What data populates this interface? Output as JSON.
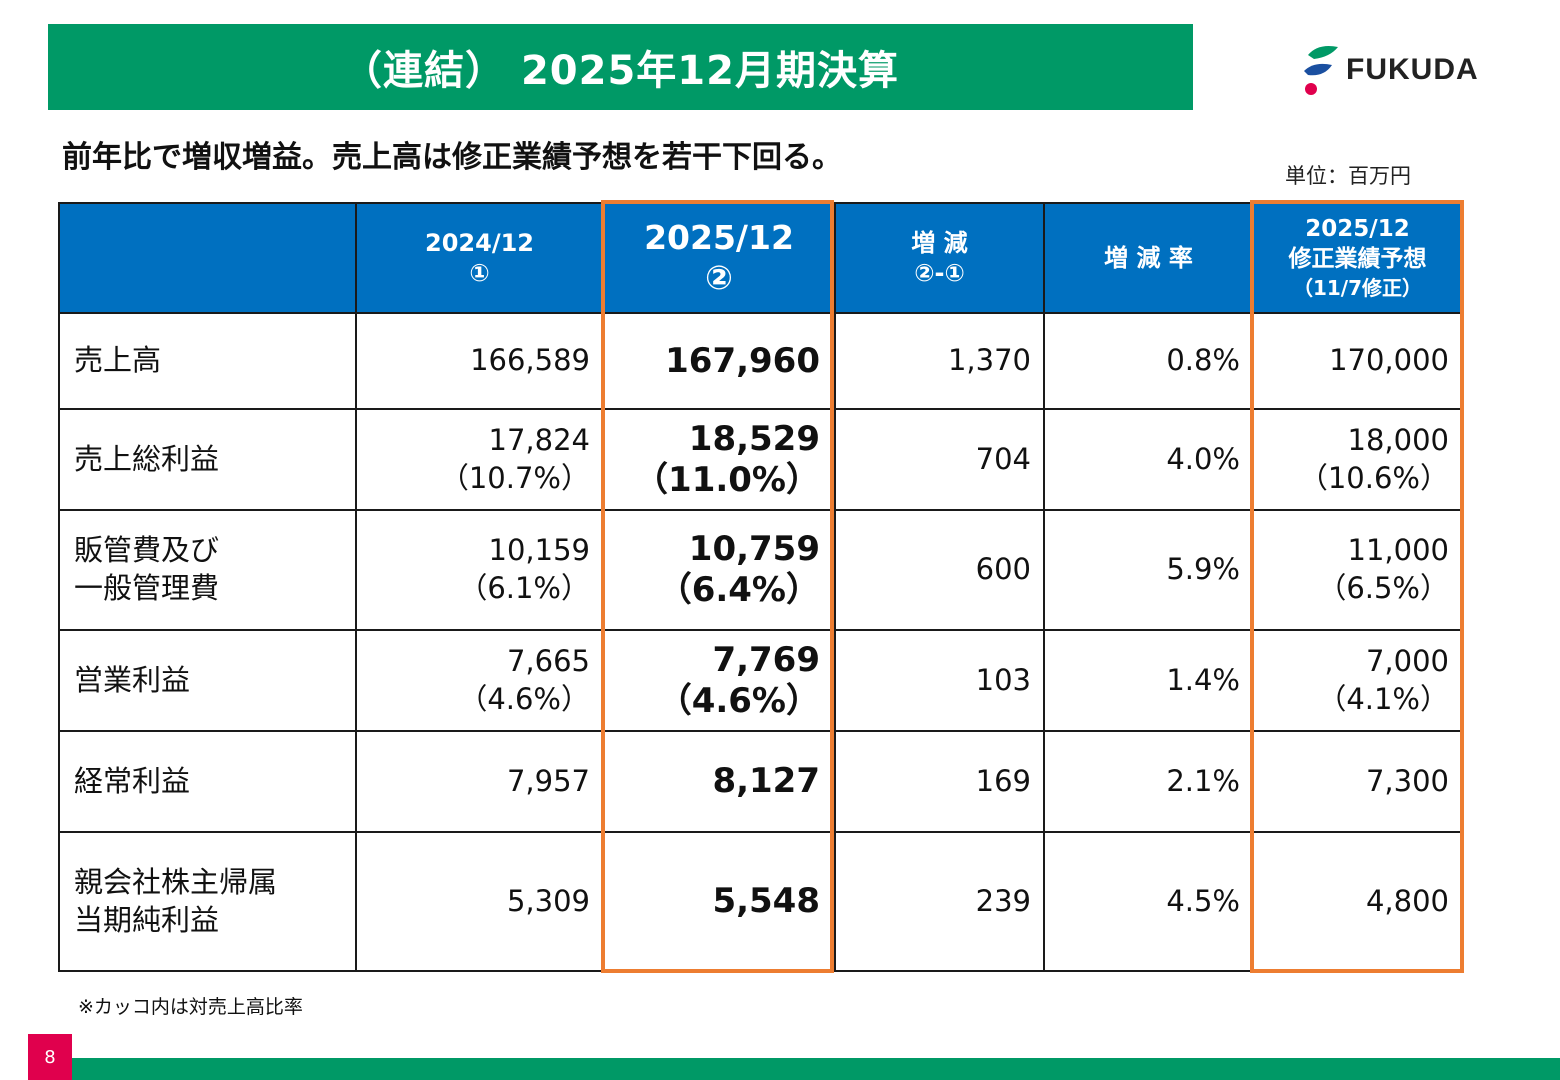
{
  "header": {
    "title": "（連結） 2025年12月期決算",
    "logo_text": "FUKUDA",
    "subtitle": "前年比で増収増益。売上高は修正業績予想を若干下回る。",
    "unit": "単位：百万円"
  },
  "table": {
    "headers": [
      {
        "line1": "",
        "line2": "",
        "line3": ""
      },
      {
        "line1": "2024/12",
        "line2": "①",
        "line3": ""
      },
      {
        "line1": "2025/12",
        "line2": "②",
        "line3": ""
      },
      {
        "line1": "増 減",
        "line2": "②-①",
        "line3": ""
      },
      {
        "line1": "増 減 率",
        "line2": "",
        "line3": ""
      },
      {
        "line1": "2025/12",
        "line2": "修正業績予想",
        "line3": "（11/7修正）"
      }
    ],
    "rows": [
      {
        "label1": "売上高",
        "label2": "",
        "prev": "166,589",
        "prev_ratio": "",
        "cur": "167,960",
        "cur_ratio": "",
        "diff": "1,370",
        "rate": "0.8%",
        "forecast": "170,000",
        "forecast_ratio": ""
      },
      {
        "label1": "売上総利益",
        "label2": "",
        "prev": "17,824",
        "prev_ratio": "（10.7%）",
        "cur": "18,529",
        "cur_ratio": "（11.0%）",
        "diff": "704",
        "rate": "4.0%",
        "forecast": "18,000",
        "forecast_ratio": "（10.6%）"
      },
      {
        "label1": "販管費及び",
        "label2": "一般管理費",
        "prev": "10,159",
        "prev_ratio": "（6.1%）",
        "cur": "10,759",
        "cur_ratio": "（6.4%）",
        "diff": "600",
        "rate": "5.9%",
        "forecast": "11,000",
        "forecast_ratio": "（6.5%）"
      },
      {
        "label1": "営業利益",
        "label2": "",
        "prev": "7,665",
        "prev_ratio": "（4.6%）",
        "cur": "7,769",
        "cur_ratio": "（4.6%）",
        "diff": "103",
        "rate": "1.4%",
        "forecast": "7,000",
        "forecast_ratio": "（4.1%）"
      },
      {
        "label1": "経常利益",
        "label2": "",
        "prev": "7,957",
        "prev_ratio": "",
        "cur": "8,127",
        "cur_ratio": "",
        "diff": "169",
        "rate": "2.1%",
        "forecast": "7,300",
        "forecast_ratio": ""
      },
      {
        "label1": "親会社株主帰属",
        "label2": "当期純利益",
        "prev": "5,309",
        "prev_ratio": "",
        "cur": "5,548",
        "cur_ratio": "",
        "diff": "239",
        "rate": "4.5%",
        "forecast": "4,800",
        "forecast_ratio": ""
      }
    ]
  },
  "footer": {
    "note": "※カッコ内は対売上高比率",
    "page_number": "8"
  },
  "colors": {
    "brand_green": "#009966",
    "header_blue": "#0070c0",
    "highlight_orange": "#ed7d31",
    "page_badge": "#e0004d"
  }
}
